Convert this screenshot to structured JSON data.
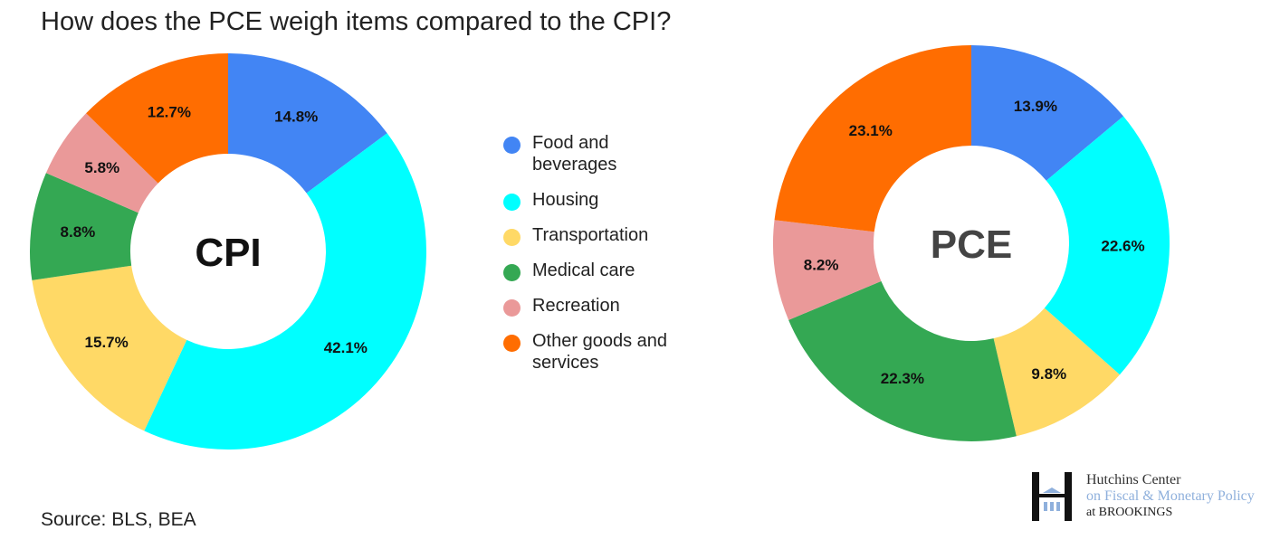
{
  "title": "How does the PCE weigh items compared to the CPI?",
  "source": "Source: BLS, BEA",
  "logo": {
    "line1": "Hutchins Center",
    "line2": "on Fiscal & Monetary Policy",
    "line3": "at BROOKINGS"
  },
  "legend": [
    {
      "label": "Food and beverages",
      "color": "#4285F4"
    },
    {
      "label": "Housing",
      "color": "#00FFFF"
    },
    {
      "label": "Transportation",
      "color": "#FFD966"
    },
    {
      "label": "Medical care",
      "color": "#34A853"
    },
    {
      "label": "Recreation",
      "color": "#EA9999"
    },
    {
      "label": "Other goods and services",
      "color": "#FF6D01"
    }
  ],
  "chart_data": [
    {
      "type": "pie",
      "donut": true,
      "center_label": "CPI",
      "categories": [
        "Food and beverages",
        "Housing",
        "Transportation",
        "Medical care",
        "Recreation",
        "Other goods and services"
      ],
      "values": [
        14.8,
        42.1,
        15.7,
        8.8,
        5.8,
        12.7
      ],
      "data_labels": [
        "14.8%",
        "42.1%",
        "15.7%",
        "8.8%",
        "5.8%",
        "12.7%"
      ]
    },
    {
      "type": "pie",
      "donut": true,
      "center_label": "PCE",
      "categories": [
        "Food and beverages",
        "Housing",
        "Transportation",
        "Medical care",
        "Recreation",
        "Other goods and services"
      ],
      "values": [
        13.9,
        22.6,
        9.8,
        22.3,
        8.2,
        23.1
      ],
      "data_labels": [
        "13.9%",
        "22.6%",
        "9.8%",
        "22.3%",
        "8.2%",
        "23.1%"
      ]
    }
  ]
}
